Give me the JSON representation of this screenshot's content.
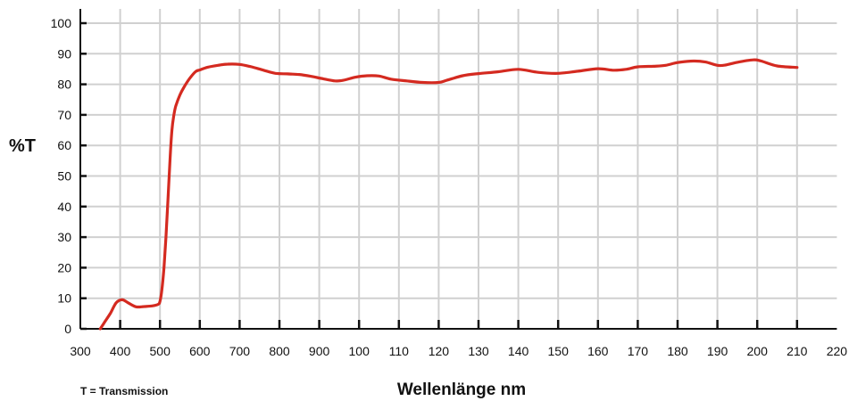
{
  "chart_data": {
    "type": "line",
    "ylabel": "%T",
    "xlabel": "Wellenlänge nm",
    "note": "T = Transmission",
    "x_tick_labels": [
      "300",
      "400",
      "500",
      "600",
      "700",
      "800",
      "900",
      "100",
      "110",
      "120",
      "130",
      "140",
      "150",
      "160",
      "170",
      "180",
      "190",
      "200",
      "210",
      "220"
    ],
    "y_tick_labels": [
      "0",
      "10",
      "20",
      "30",
      "40",
      "50",
      "60",
      "70",
      "80",
      "90",
      "100"
    ],
    "xlim": [
      300,
      2200
    ],
    "ylim": [
      0,
      100
    ],
    "grid": true,
    "line_color": "#d42a20",
    "grid_color": "#d0d0d0",
    "series": [
      {
        "x": [
          350,
          360,
          375,
          390,
          405,
          420,
          440,
          460,
          480,
          495,
          500,
          505,
          510,
          515,
          520,
          525,
          530,
          535,
          540,
          550,
          560,
          575,
          590,
          600,
          620,
          650,
          670,
          700,
          730,
          760,
          790,
          820,
          850,
          880,
          910,
          940,
          960,
          990,
          1020,
          1050,
          1080,
          1120,
          1160,
          1200,
          1220,
          1260,
          1300,
          1350,
          1400,
          1450,
          1500,
          1550,
          1600,
          1640,
          1670,
          1700,
          1740,
          1770,
          1800,
          1840,
          1870,
          1900,
          1920,
          1950,
          1990,
          2010,
          2050,
          2100
        ],
        "y": [
          0,
          2,
          5,
          8.5,
          9.5,
          8.5,
          7.2,
          7.3,
          7.5,
          8,
          9,
          13,
          20,
          30,
          42,
          55,
          65,
          70,
          73,
          76.5,
          79,
          82,
          84.2,
          84.7,
          85.6,
          86.3,
          86.6,
          86.5,
          85.7,
          84.6,
          83.6,
          83.4,
          83.2,
          82.6,
          81.8,
          81.1,
          81.3,
          82.3,
          82.8,
          82.7,
          81.7,
          81.1,
          80.6,
          80.6,
          81.3,
          82.8,
          83.5,
          84.1,
          84.9,
          83.9,
          83.6,
          84.3,
          85.1,
          84.6,
          84.9,
          85.7,
          85.9,
          86.2,
          87.1,
          87.6,
          87.3,
          86.2,
          86.3,
          87.2,
          88,
          87.6,
          86,
          85.5
        ]
      }
    ]
  }
}
